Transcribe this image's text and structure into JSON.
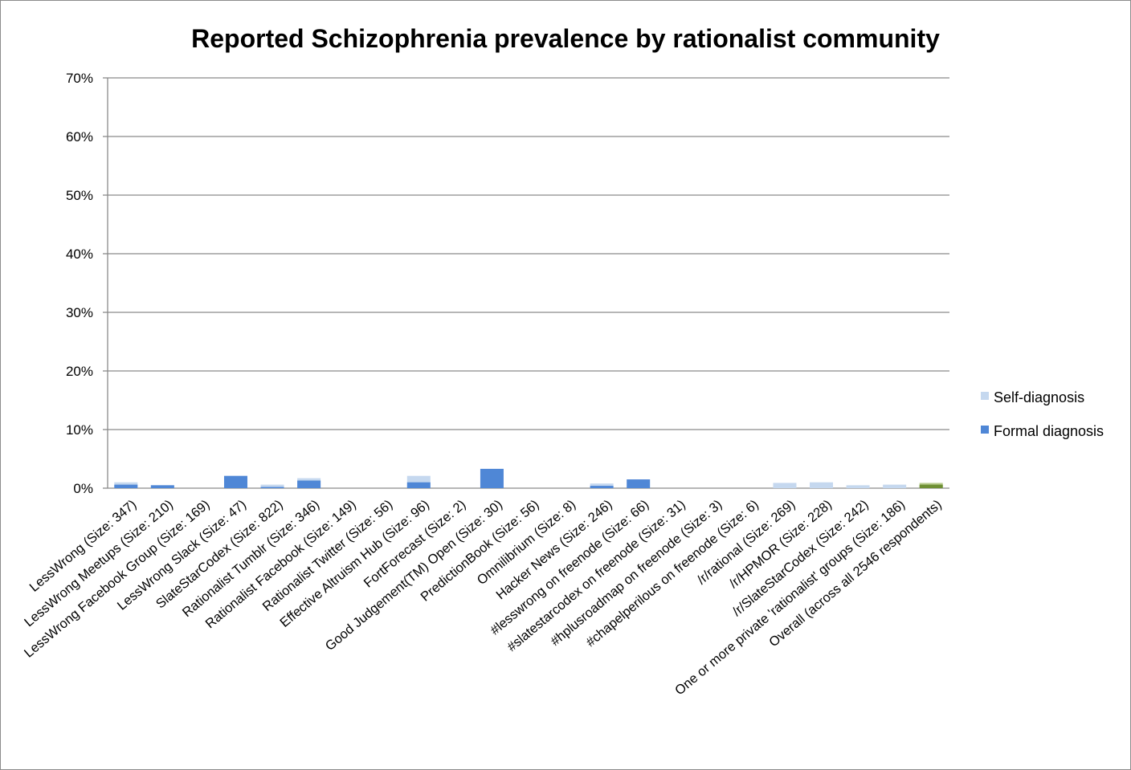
{
  "chart_data": {
    "type": "bar",
    "title": "Reported Schizophrenia prevalence by rationalist community",
    "xlabel": "",
    "ylabel": "",
    "ylim": [
      0,
      70
    ],
    "y_ticks": [
      "0%",
      "10%",
      "20%",
      "30%",
      "40%",
      "50%",
      "60%",
      "70%"
    ],
    "y_tick_values": [
      0,
      10,
      20,
      30,
      40,
      50,
      60,
      70
    ],
    "grid": true,
    "legend_position": "right",
    "categories": [
      "LessWrong (Size: 347)",
      "LessWrong Meetups (Size: 210)",
      "LessWrong Facebook Group (Size: 169)",
      "LessWrong Slack (Size: 47)",
      "SlateStarCodex (Size: 822)",
      "Rationalist Tumblr (Size: 346)",
      "Rationalist Facebook (Size: 149)",
      "Rationalist Twitter (Size: 56)",
      "Effective Altruism Hub (Size: 96)",
      "FortForecast (Size: 2)",
      "Good Judgement(TM) Open  (Size: 30)",
      "PredictionBook (Size: 56)",
      "Omnilibrium (Size: 8)",
      "Hacker News (Size: 246)",
      "#lesswrong on freenode  (Size: 66)",
      "#slatestarcodex on freenode  (Size: 31)",
      "#hplusroadmap on freenode  (Size: 3)",
      "#chapelperilous on freenode (Size: 6)",
      "/r/rational (Size: 269)",
      "/r/HPMOR (Size: 228)",
      "/r/SlateStarCodex (Size: 242)",
      "One or more private 'rationalist' groups  (Size: 186)",
      "Overall (across all 2546 respondents)"
    ],
    "series": [
      {
        "name": "Self-diagnosis",
        "color": "#c5d8ef",
        "values": [
          1.0,
          0.5,
          0,
          0,
          0.6,
          1.7,
          0,
          0,
          2.1,
          0,
          0,
          0,
          0,
          0.8,
          0,
          0,
          0,
          0,
          0.9,
          1.0,
          0.5,
          0.6,
          0.9
        ]
      },
      {
        "name": "Formal diagnosis",
        "color": "#4f87d6",
        "values": [
          0.6,
          0.5,
          0,
          2.1,
          0.2,
          1.3,
          0,
          0,
          1.0,
          0,
          3.3,
          0,
          0,
          0.4,
          1.5,
          0,
          0,
          0,
          0,
          0,
          0,
          0,
          0.6
        ]
      }
    ],
    "overall_colors": {
      "self": "#b7cc8e",
      "formal": "#6e8f34"
    }
  }
}
